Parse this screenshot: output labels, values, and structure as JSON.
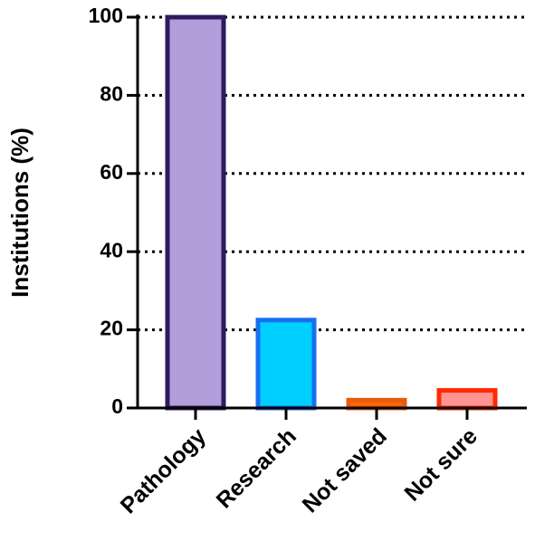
{
  "chart_data": {
    "type": "bar",
    "y_label": "Institutions (%)",
    "categories": [
      "Pathology",
      "Research",
      "Not saved",
      "Not sure"
    ],
    "values": [
      100,
      22.5,
      2,
      4.5
    ],
    "colors": [
      "#b39ddb",
      "#00cfff",
      "#ff6a00",
      "#ff9494"
    ],
    "edge_colors": [
      "#2e1a5e",
      "#1a6ef0",
      "#e85a10",
      "#ff2a00"
    ],
    "ylim": [
      0,
      100
    ],
    "yticks": [
      0,
      20,
      40,
      60,
      80,
      100
    ],
    "grid": true
  }
}
